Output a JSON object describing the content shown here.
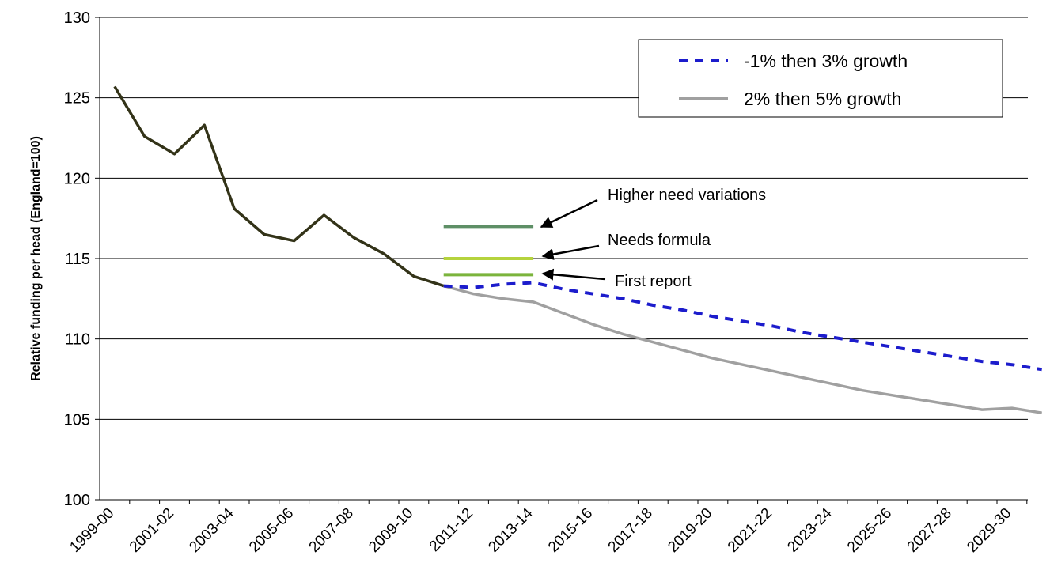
{
  "chart_data": {
    "type": "line",
    "y_label": "Relative funding per head (England=100)",
    "categories": [
      "1999-00",
      null,
      "2001-02",
      null,
      "2003-04",
      null,
      "2005-06",
      null,
      "2007-08",
      null,
      "2009-10",
      null,
      "2011-12",
      null,
      "2013-14",
      null,
      "2015-16",
      null,
      "2017-18",
      null,
      "2019-20",
      null,
      "2021-22",
      null,
      "2023-24",
      null,
      "2025-26",
      null,
      "2027-28",
      null,
      "2029-30",
      null
    ],
    "ylim": [
      100,
      130
    ],
    "yticks": [
      100,
      105,
      110,
      115,
      120,
      125,
      130
    ],
    "grid": true,
    "series": [
      {
        "color": "#333318",
        "style": "solid",
        "values": [
          125.7,
          122.6,
          121.5,
          123.3,
          118.1,
          116.5,
          116.1,
          117.7,
          116.3,
          115.3,
          113.9,
          113.3,
          null,
          null,
          null,
          null,
          null,
          null,
          null,
          null,
          null,
          null,
          null,
          null,
          null,
          null,
          null,
          null,
          null,
          null,
          null,
          null
        ]
      },
      {
        "name": "-1% then 3% growth",
        "color": "#1c1ccc",
        "style": "dashed",
        "values": [
          null,
          null,
          null,
          null,
          null,
          null,
          null,
          null,
          null,
          null,
          null,
          113.3,
          113.2,
          113.4,
          113.5,
          113.1,
          112.8,
          112.5,
          112.1,
          111.8,
          111.4,
          111.1,
          110.8,
          110.4,
          110.1,
          109.8,
          109.5,
          109.2,
          108.9,
          108.6,
          108.4,
          108.1
        ]
      },
      {
        "name": "2% then 5% growth",
        "color": "#a0a0a0",
        "style": "solid",
        "values": [
          null,
          null,
          null,
          null,
          null,
          null,
          null,
          null,
          null,
          null,
          null,
          113.3,
          112.8,
          112.5,
          112.3,
          111.6,
          110.9,
          110.3,
          109.8,
          109.3,
          108.8,
          108.4,
          108.0,
          107.6,
          107.2,
          106.8,
          106.5,
          106.2,
          105.9,
          105.6,
          105.7,
          105.4
        ]
      }
    ],
    "annotations": [
      {
        "text": "Higher need variations",
        "value": 117,
        "color": "#5e8f66"
      },
      {
        "text": "Needs formula",
        "value": 115,
        "color": "#b5d33d"
      },
      {
        "text": "First report",
        "value": 114,
        "color": "#7bb43c"
      }
    ]
  }
}
